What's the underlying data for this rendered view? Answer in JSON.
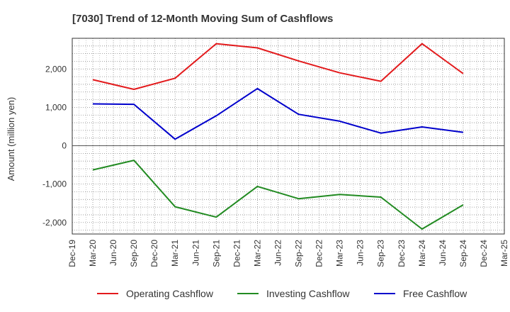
{
  "chart_data": {
    "type": "line",
    "title": "[7030]  Trend of 12-Month Moving Sum of Cashflows",
    "xlabel": "",
    "ylabel": "Amount (million yen)",
    "categories": [
      "Dec-19",
      "Mar-20",
      "Jun-20",
      "Sep-20",
      "Dec-20",
      "Mar-21",
      "Jun-21",
      "Sep-21",
      "Dec-21",
      "Mar-22",
      "Jun-22",
      "Sep-22",
      "Dec-22",
      "Mar-23",
      "Jun-23",
      "Sep-23",
      "Dec-23",
      "Mar-24",
      "Jun-24",
      "Sep-24",
      "Dec-24",
      "Mar-25"
    ],
    "ylim": [
      -2300,
      2800
    ],
    "yticks": [
      -2000,
      -1000,
      0,
      1000,
      2000
    ],
    "ytick_labels": [
      "-2,000",
      "-1,000",
      "0",
      "1,000",
      "2,000"
    ],
    "grid": true,
    "legend_position": "bottom",
    "series": [
      {
        "name": "Operating Cashflow",
        "color": "#e31a1c",
        "x": [
          "Mar-20",
          "Sep-20",
          "Mar-21",
          "Sep-21",
          "Mar-22",
          "Sep-22",
          "Mar-23",
          "Sep-23",
          "Mar-24",
          "Sep-24"
        ],
        "values": [
          1720,
          1470,
          1760,
          2660,
          2550,
          2210,
          1900,
          1680,
          2660,
          1880
        ]
      },
      {
        "name": "Investing Cashflow",
        "color": "#228b22",
        "x": [
          "Mar-20",
          "Sep-20",
          "Mar-21",
          "Sep-21",
          "Mar-22",
          "Sep-22",
          "Mar-23",
          "Sep-23",
          "Mar-24",
          "Sep-24"
        ],
        "values": [
          -630,
          -380,
          -1590,
          -1860,
          -1060,
          -1380,
          -1270,
          -1340,
          -2170,
          -1540
        ]
      },
      {
        "name": "Free Cashflow",
        "color": "#0000cc",
        "x": [
          "Mar-20",
          "Sep-20",
          "Mar-21",
          "Sep-21",
          "Mar-22",
          "Sep-22",
          "Mar-23",
          "Sep-23",
          "Mar-24",
          "Sep-24"
        ],
        "values": [
          1090,
          1080,
          170,
          780,
          1490,
          820,
          640,
          330,
          490,
          350
        ]
      }
    ]
  }
}
